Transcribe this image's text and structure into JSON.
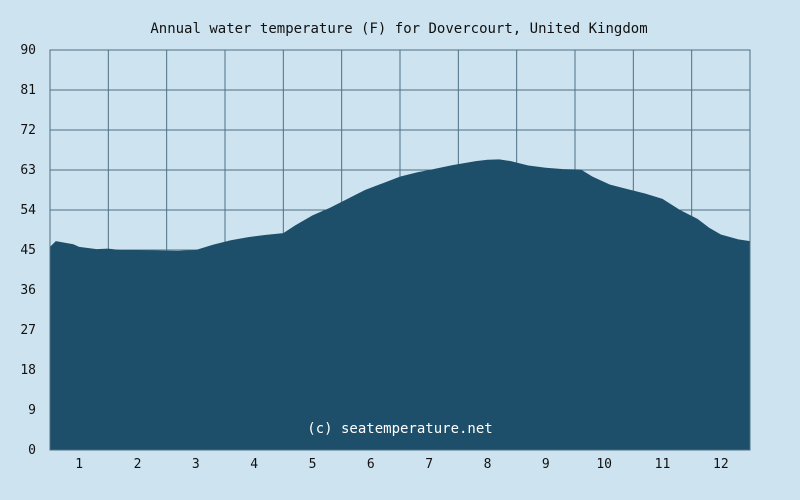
{
  "chart_data": {
    "type": "area",
    "title": "Annual water temperature (F) for Dovercourt, United Kingdom",
    "xlabel": "",
    "ylabel": "",
    "x_ticks": [
      "1",
      "2",
      "3",
      "4",
      "5",
      "6",
      "7",
      "8",
      "9",
      "10",
      "11",
      "12"
    ],
    "y_ticks": [
      "0",
      "9",
      "18",
      "27",
      "36",
      "45",
      "54",
      "63",
      "72",
      "81",
      "90"
    ],
    "xlim": [
      0.5,
      12.5
    ],
    "ylim": [
      0,
      90
    ],
    "grid": true,
    "series": [
      {
        "x": [
          0.5,
          0.6,
          0.9,
          1.0,
          1.3,
          1.5,
          1.7,
          2.0,
          2.3,
          2.7,
          3.0,
          3.3,
          3.6,
          3.9,
          4.2,
          4.5,
          4.7,
          5.0,
          5.3,
          5.6,
          5.9,
          6.2,
          6.5,
          6.8,
          7.0,
          7.4,
          7.8,
          8.0,
          8.2,
          8.4,
          8.7,
          9.0,
          9.3,
          9.6,
          9.8,
          10.1,
          10.4,
          10.7,
          11.0,
          11.3,
          11.6,
          11.8,
          12.0,
          12.3,
          12.5
        ],
        "values": [
          45.7,
          47.0,
          46.3,
          45.7,
          45.2,
          45.3,
          45.0,
          45.0,
          44.9,
          44.8,
          45.0,
          46.2,
          47.2,
          47.9,
          48.4,
          48.8,
          50.5,
          52.8,
          54.5,
          56.5,
          58.5,
          60.0,
          61.5,
          62.5,
          63.0,
          64.1,
          65.0,
          65.3,
          65.4,
          65.0,
          64.0,
          63.5,
          63.2,
          63.1,
          61.5,
          59.7,
          58.7,
          57.7,
          56.5,
          54.0,
          52.0,
          50.0,
          48.5,
          47.4,
          47.0
        ]
      }
    ],
    "watermark": "(c) seatemperature.net",
    "colors": {
      "background": "#cde3ef",
      "area_fill": "#1e4f6a",
      "grid": "#4d6f84",
      "text": "#111111",
      "watermark": "#ffffff"
    }
  }
}
